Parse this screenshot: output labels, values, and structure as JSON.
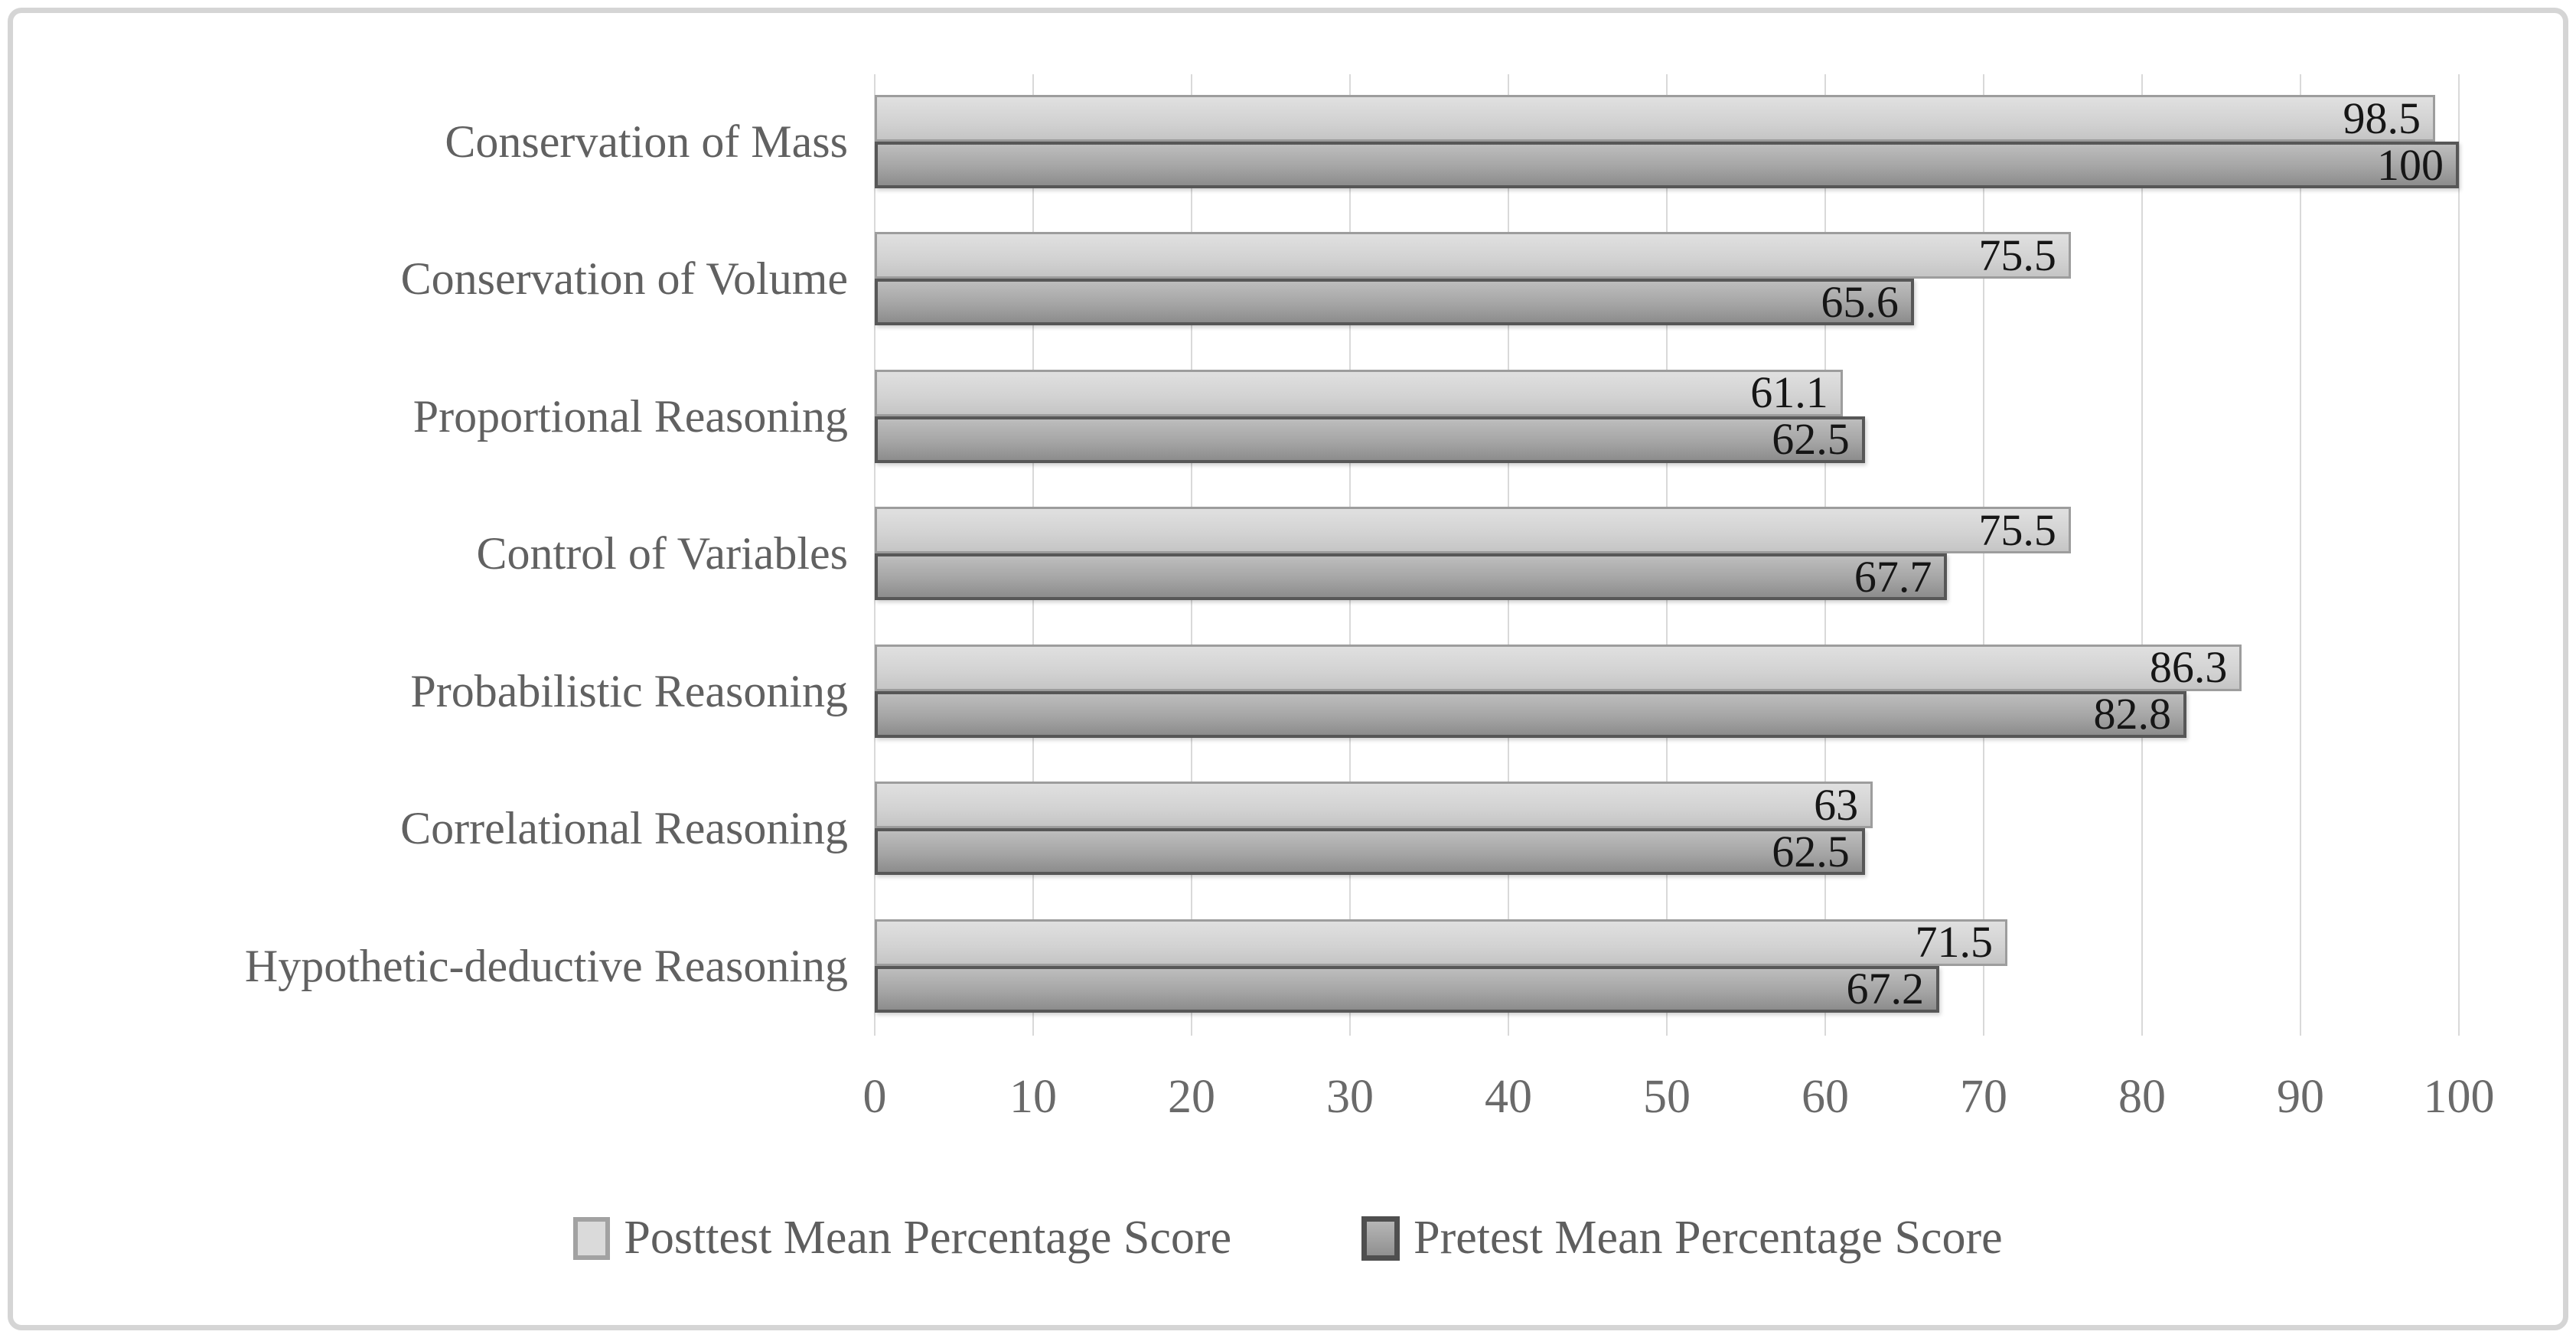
{
  "chart_data": {
    "type": "bar",
    "orientation": "horizontal",
    "title": "",
    "xlabel": "",
    "ylabel": "",
    "xlim": [
      0,
      100
    ],
    "x_ticks": [
      0,
      10,
      20,
      30,
      40,
      50,
      60,
      70,
      80,
      90,
      100
    ],
    "grid": true,
    "legend_position": "bottom",
    "categories": [
      "Conservation of Mass",
      "Conservation of Volume",
      "Proportional Reasoning",
      "Control of Variables",
      "Probabilistic Reasoning",
      "Correlational Reasoning",
      "Hypothetic-deductive Reasoning"
    ],
    "series": [
      {
        "name": "Posttest Mean Percentage Score",
        "values": [
          98.5,
          75.5,
          61.1,
          75.5,
          86.3,
          63,
          71.5
        ],
        "labels": [
          "98.5",
          "75.5",
          "61.1",
          "75.5",
          "86.3",
          "63",
          "71.5"
        ]
      },
      {
        "name": "Pretest Mean Percentage Score",
        "values": [
          100,
          65.6,
          62.5,
          67.7,
          82.8,
          62.5,
          67.2
        ],
        "labels": [
          "100",
          "65.6",
          "62.5",
          "67.7",
          "82.8",
          "62.5",
          "67.2"
        ]
      }
    ]
  },
  "colors": {
    "posttest_fill_top": "#e0e0e0",
    "posttest_fill_bottom": "#c5c5c5",
    "posttest_border": "#9d9d9d",
    "pretest_fill_top": "#bdbdbd",
    "pretest_fill_bottom": "#8d8d8d",
    "pretest_border": "#575757",
    "gridline": "#d9d9d9",
    "axis_text": "#6a6a6a",
    "category_text": "#616161",
    "data_label_text": "#161616",
    "frame_border": "#d5d5d5"
  }
}
